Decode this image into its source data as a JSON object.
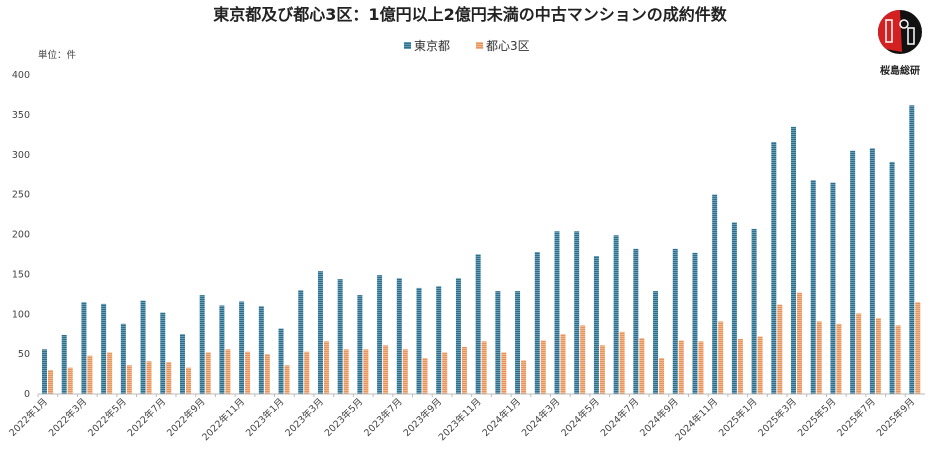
{
  "chart_data": {
    "type": "bar",
    "title": "東京都及び都心3区：1億円以上2億円未満の中古マンションの成約件数",
    "unit_label": "単位：件",
    "ylim": [
      0,
      400
    ],
    "yticks": [
      0,
      50,
      100,
      150,
      200,
      250,
      300,
      350,
      400
    ],
    "grid": false,
    "legend_position": "top-center",
    "categories": [
      "2022年1月",
      "2022年2月",
      "2022年3月",
      "2022年4月",
      "2022年5月",
      "2022年6月",
      "2022年7月",
      "2022年8月",
      "2022年9月",
      "2022年10月",
      "2022年11月",
      "2022年12月",
      "2023年1月",
      "2023年2月",
      "2023年3月",
      "2023年4月",
      "2023年5月",
      "2023年6月",
      "2023年7月",
      "2023年8月",
      "2023年9月",
      "2023年10月",
      "2023年11月",
      "2023年12月",
      "2024年1月",
      "2024年2月",
      "2024年3月",
      "2024年4月",
      "2024年5月",
      "2024年6月",
      "2024年7月",
      "2024年8月",
      "2024年9月",
      "2024年10月",
      "2024年11月",
      "2024年12月",
      "2025年1月",
      "2025年2月",
      "2025年3月",
      "2025年4月",
      "2025年5月",
      "2025年6月",
      "2025年7月",
      "2025年8月",
      "2025年9月"
    ],
    "series": [
      {
        "name": "東京都",
        "color": "#2e6f8e",
        "values": [
          56,
          74,
          115,
          113,
          88,
          117,
          102,
          75,
          124,
          111,
          116,
          110,
          82,
          130,
          154,
          144,
          124,
          149,
          145,
          133,
          135,
          145,
          175,
          129,
          129,
          178,
          204,
          204,
          173,
          199,
          182,
          129,
          182,
          177,
          250,
          215,
          207,
          316,
          335,
          268,
          265,
          305,
          308,
          291,
          362
        ]
      },
      {
        "name": "都心3区",
        "color": "#e8935a",
        "values": [
          30,
          33,
          48,
          52,
          36,
          41,
          40,
          33,
          52,
          56,
          53,
          50,
          36,
          53,
          66,
          56,
          56,
          61,
          56,
          45,
          52,
          59,
          66,
          52,
          42,
          67,
          75,
          86,
          61,
          78,
          70,
          45,
          67,
          66,
          91,
          69,
          72,
          112,
          127,
          91,
          88,
          101,
          95,
          86,
          115
        ]
      }
    ]
  },
  "logo": {
    "text": "桜島総研"
  }
}
